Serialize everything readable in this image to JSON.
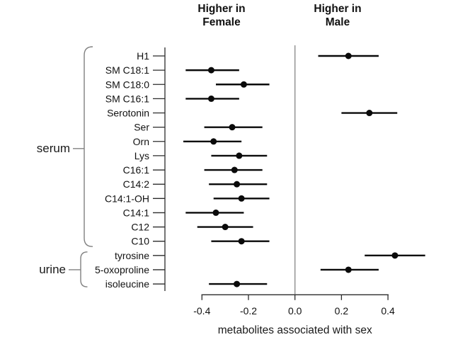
{
  "header": {
    "left": {
      "line1": "Higher in",
      "line2": "Female"
    },
    "right": {
      "line1": "Higher in",
      "line2": "Male"
    }
  },
  "groups": [
    {
      "label": "serum",
      "from": 0,
      "to": 13
    },
    {
      "label": "urine",
      "from": 14,
      "to": 16
    }
  ],
  "colors": {
    "data": "#0a0a0a",
    "axis": "#2b2b2b",
    "zero_line": "#9a9a9a",
    "brace": "#808080",
    "text": "#111111"
  },
  "chart_data": {
    "type": "forest",
    "title": "",
    "xlabel": "metabolites associated with sex",
    "x_ticks": [
      -0.4,
      -0.2,
      0.0,
      0.2,
      0.4
    ],
    "x_tick_labels": [
      "-0.4",
      "-0.2",
      "0.0",
      "0.2",
      "0.4"
    ],
    "xlim": [
      -0.55,
      0.6
    ],
    "zero_line": 0,
    "grid": false,
    "legend": "none",
    "rows": [
      {
        "label": "H1",
        "group": "serum",
        "estimate": 0.23,
        "ci_low": 0.1,
        "ci_high": 0.36
      },
      {
        "label": "SM C18:1",
        "group": "serum",
        "estimate": -0.36,
        "ci_low": -0.47,
        "ci_high": -0.24
      },
      {
        "label": "SM C18:0",
        "group": "serum",
        "estimate": -0.22,
        "ci_low": -0.34,
        "ci_high": -0.11
      },
      {
        "label": "SM C16:1",
        "group": "serum",
        "estimate": -0.36,
        "ci_low": -0.47,
        "ci_high": -0.24
      },
      {
        "label": "Serotonin",
        "group": "serum",
        "estimate": 0.32,
        "ci_low": 0.2,
        "ci_high": 0.44
      },
      {
        "label": "Ser",
        "group": "serum",
        "estimate": -0.27,
        "ci_low": -0.39,
        "ci_high": -0.14
      },
      {
        "label": "Orn",
        "group": "serum",
        "estimate": -0.35,
        "ci_low": -0.48,
        "ci_high": -0.23
      },
      {
        "label": "Lys",
        "group": "serum",
        "estimate": -0.24,
        "ci_low": -0.36,
        "ci_high": -0.12
      },
      {
        "label": "C16:1",
        "group": "serum",
        "estimate": -0.26,
        "ci_low": -0.39,
        "ci_high": -0.14
      },
      {
        "label": "C14:2",
        "group": "serum",
        "estimate": -0.25,
        "ci_low": -0.37,
        "ci_high": -0.12
      },
      {
        "label": "C14:1-OH",
        "group": "serum",
        "estimate": -0.23,
        "ci_low": -0.35,
        "ci_high": -0.11
      },
      {
        "label": "C14:1",
        "group": "serum",
        "estimate": -0.34,
        "ci_low": -0.47,
        "ci_high": -0.22
      },
      {
        "label": "C12",
        "group": "serum",
        "estimate": -0.3,
        "ci_low": -0.42,
        "ci_high": -0.18
      },
      {
        "label": "C10",
        "group": "serum",
        "estimate": -0.23,
        "ci_low": -0.36,
        "ci_high": -0.11
      },
      {
        "label": "tyrosine",
        "group": "urine",
        "estimate": 0.43,
        "ci_low": 0.3,
        "ci_high": 0.56
      },
      {
        "label": "5-oxoproline",
        "group": "urine",
        "estimate": 0.23,
        "ci_low": 0.11,
        "ci_high": 0.36
      },
      {
        "label": "isoleucine",
        "group": "urine",
        "estimate": -0.25,
        "ci_low": -0.37,
        "ci_high": -0.12
      }
    ]
  }
}
